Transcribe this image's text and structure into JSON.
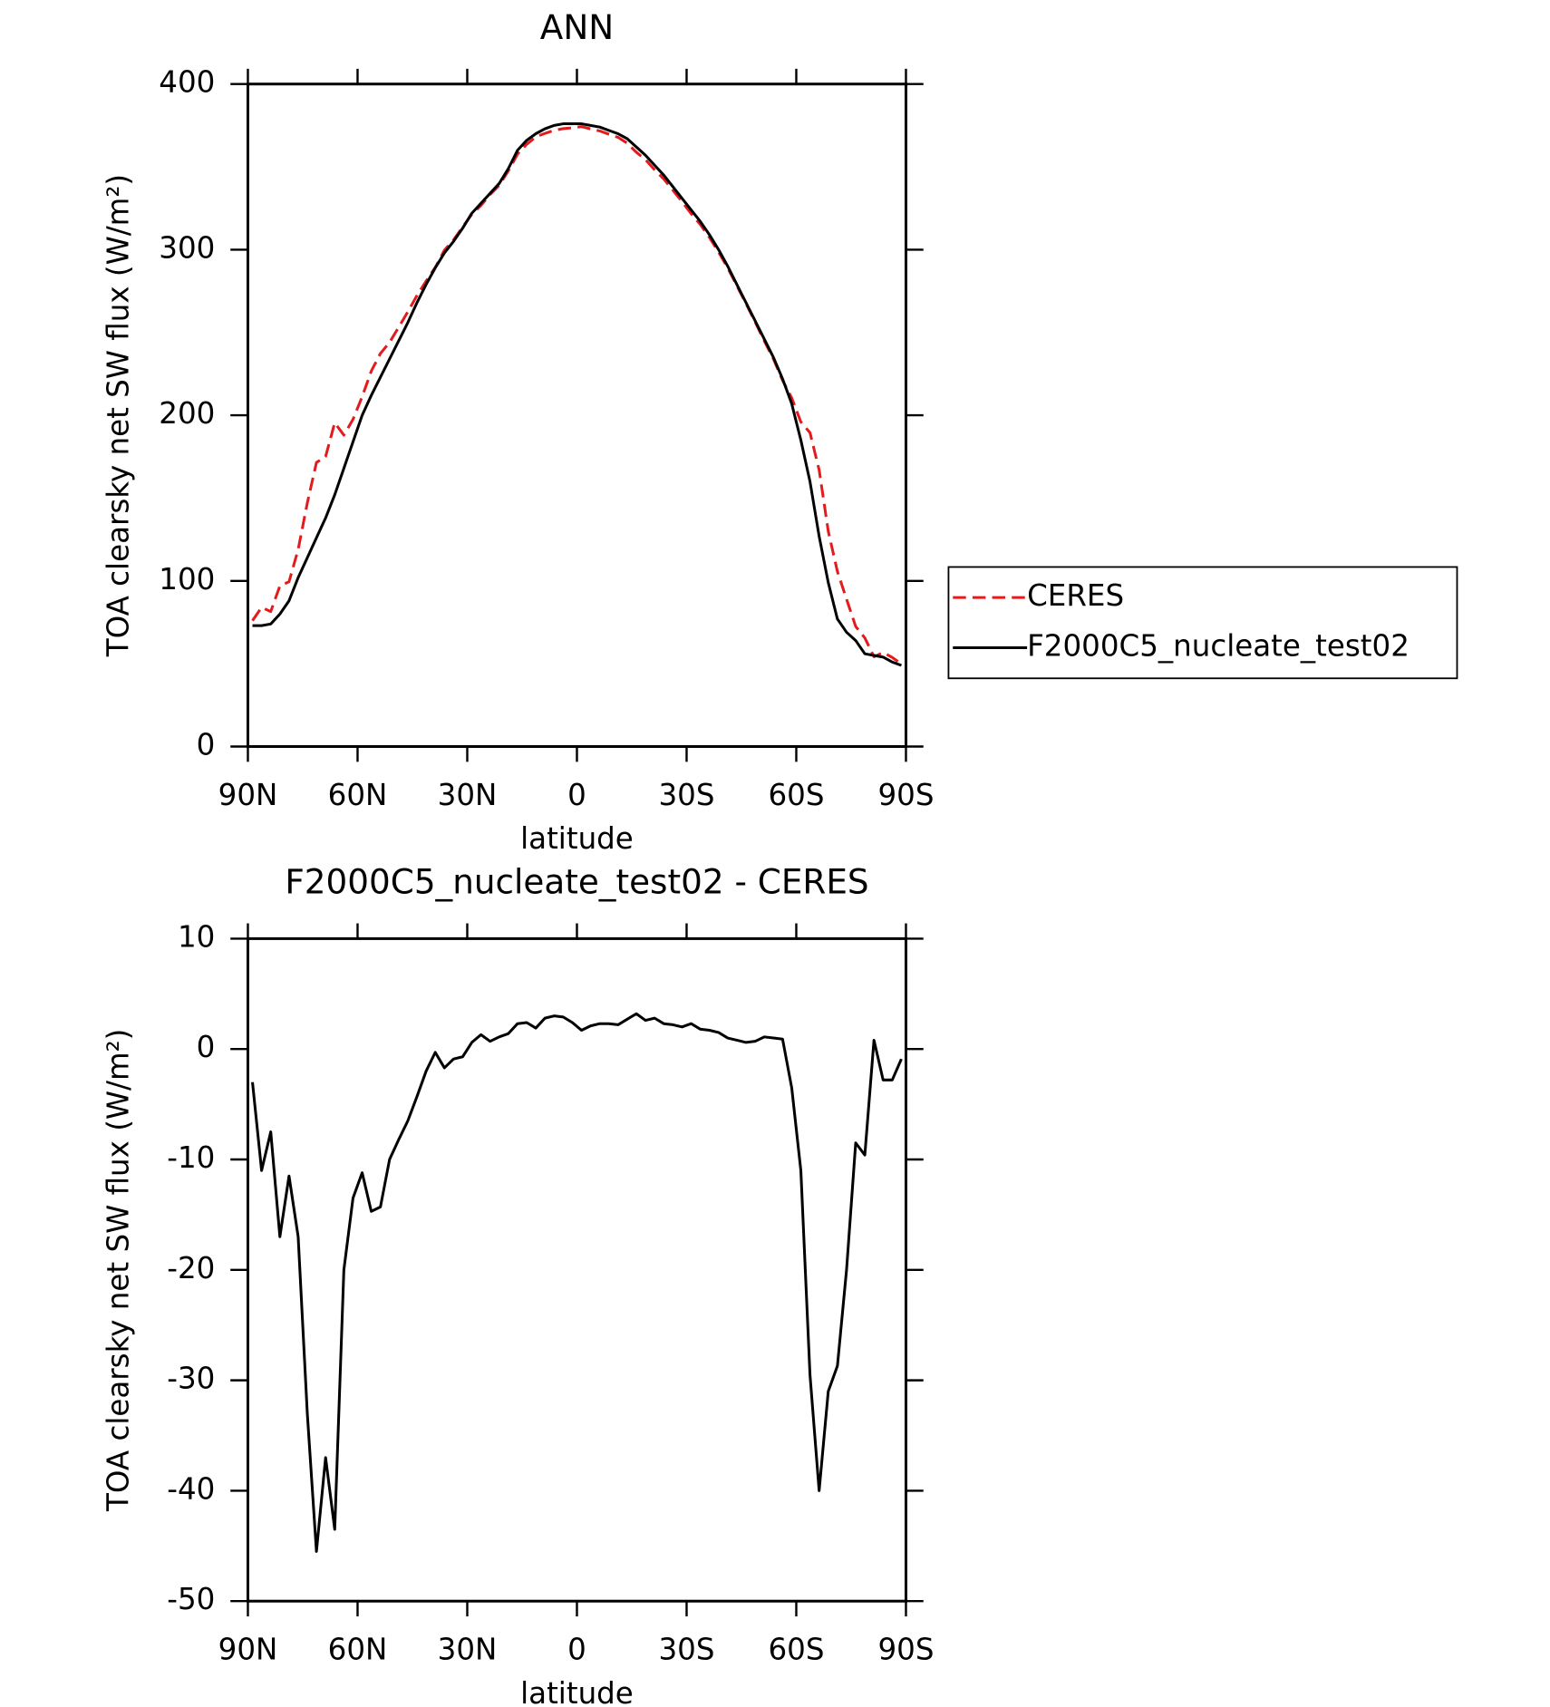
{
  "chart_data": [
    {
      "type": "line",
      "title": "ANN",
      "xlabel": "latitude",
      "ylabel": "TOA clearsky net SW flux (W/m²)",
      "x": [
        88.75,
        86.25,
        83.75,
        81.25,
        78.75,
        76.25,
        73.75,
        71.25,
        68.75,
        66.25,
        63.75,
        61.25,
        58.75,
        56.25,
        53.75,
        51.25,
        48.75,
        46.25,
        43.75,
        41.25,
        38.75,
        36.25,
        33.75,
        31.25,
        28.75,
        26.25,
        23.75,
        21.25,
        18.75,
        16.25,
        13.75,
        11.25,
        8.75,
        6.25,
        3.75,
        1.25,
        -1.25,
        -3.75,
        -6.25,
        -8.75,
        -11.25,
        -13.75,
        -16.25,
        -18.75,
        -21.25,
        -23.75,
        -26.25,
        -28.75,
        -31.25,
        -33.75,
        -36.25,
        -38.75,
        -41.25,
        -43.75,
        -46.25,
        -48.75,
        -51.25,
        -53.75,
        -56.25,
        -58.75,
        -61.25,
        -63.75,
        -66.25,
        -68.75,
        -71.25,
        -73.75,
        -76.25,
        -78.75,
        -81.25,
        -83.75,
        -86.25,
        -88.75
      ],
      "series": [
        {
          "name": "CERES",
          "color": "#e41a1c",
          "line_style": "dashed",
          "values": [
            76,
            84,
            81.5,
            97,
            99.5,
            119,
            147,
            171.5,
            175,
            195.5,
            188,
            197.5,
            211.2,
            226.7,
            237.3,
            244,
            253.2,
            262.5,
            272.3,
            281,
            289.3,
            299.7,
            305.9,
            313.7,
            321.4,
            326.7,
            333.3,
            338.9,
            347.6,
            357.7,
            363.6,
            368.1,
            370.2,
            372,
            373.1,
            373.6,
            374.3,
            372.9,
            371.7,
            369.7,
            367.8,
            364.3,
            358.8,
            354.4,
            348.2,
            342.7,
            335.8,
            329,
            321.7,
            315.2,
            307.3,
            298.5,
            289,
            278.2,
            267.4,
            256.3,
            244.9,
            234,
            221.1,
            210.5,
            196,
            189.5,
            167,
            130,
            105.7,
            89,
            72.5,
            65.6,
            54.2,
            56.8,
            53.8,
            49.9
          ]
        },
        {
          "name": "F2000C5_nucleate_test02",
          "color": "#000000",
          "line_style": "solid",
          "values": [
            73,
            73,
            74,
            80,
            88,
            102,
            114,
            126,
            138,
            152,
            168,
            184,
            200,
            212,
            223,
            234,
            245,
            256,
            268,
            279,
            289,
            298,
            305,
            313,
            322,
            328,
            334,
            340,
            349,
            360,
            366,
            370,
            373,
            375,
            376,
            376,
            376,
            375,
            374,
            372,
            370,
            367,
            362,
            357,
            351,
            345,
            338,
            331,
            324,
            317,
            309,
            300,
            290,
            279,
            268,
            257,
            246,
            235,
            222,
            207,
            185,
            160,
            127,
            99,
            77,
            69,
            64,
            56,
            55,
            54,
            51,
            49
          ]
        }
      ],
      "xlim": [
        90,
        -90
      ],
      "xticks": [
        {
          "value": 90,
          "label": "90N"
        },
        {
          "value": 60,
          "label": "60N"
        },
        {
          "value": 30,
          "label": "30N"
        },
        0,
        {
          "value": -30,
          "label": "30S"
        },
        {
          "value": -60,
          "label": "60S"
        },
        {
          "value": -90,
          "label": "90S"
        }
      ],
      "ylim": [
        0,
        400
      ],
      "yticks": [
        0,
        100,
        200,
        300,
        400
      ],
      "legend": "right"
    },
    {
      "type": "line",
      "title": "F2000C5_nucleate_test02 - CERES",
      "xlabel": "latitude",
      "ylabel": "TOA clearsky net SW flux (W/m²)",
      "x": [
        88.75,
        86.25,
        83.75,
        81.25,
        78.75,
        76.25,
        73.75,
        71.25,
        68.75,
        66.25,
        63.75,
        61.25,
        58.75,
        56.25,
        53.75,
        51.25,
        48.75,
        46.25,
        43.75,
        41.25,
        38.75,
        36.25,
        33.75,
        31.25,
        28.75,
        26.25,
        23.75,
        21.25,
        18.75,
        16.25,
        13.75,
        11.25,
        8.75,
        6.25,
        3.75,
        1.25,
        -1.25,
        -3.75,
        -6.25,
        -8.75,
        -11.25,
        -13.75,
        -16.25,
        -18.75,
        -21.25,
        -23.75,
        -26.25,
        -28.75,
        -31.25,
        -33.75,
        -36.25,
        -38.75,
        -41.25,
        -43.75,
        -46.25,
        -48.75,
        -51.25,
        -53.75,
        -56.25,
        -58.75,
        -61.25,
        -63.75,
        -66.25,
        -68.75,
        -71.25,
        -73.75,
        -76.25,
        -78.75,
        -81.25,
        -83.75,
        -86.25,
        -88.75
      ],
      "series": [
        {
          "color": "#000000",
          "line_style": "solid",
          "values": [
            -3,
            -11,
            -7.5,
            -17,
            -11.5,
            -17,
            -33,
            -45.5,
            -37,
            -43.5,
            -20,
            -13.5,
            -11.2,
            -14.7,
            -14.3,
            -10,
            -8.2,
            -6.5,
            -4.3,
            -2,
            -0.3,
            -1.7,
            -0.9,
            -0.7,
            0.6,
            1.3,
            0.7,
            1.1,
            1.4,
            2.3,
            2.4,
            1.9,
            2.8,
            3,
            2.9,
            2.4,
            1.7,
            2.1,
            2.3,
            2.3,
            2.2,
            2.7,
            3.2,
            2.6,
            2.8,
            2.3,
            2.2,
            2,
            2.3,
            1.8,
            1.7,
            1.5,
            1,
            0.8,
            0.6,
            0.7,
            1.1,
            1,
            0.9,
            -3.5,
            -11,
            -29.5,
            -40,
            -31,
            -28.7,
            -20,
            -8.5,
            -9.6,
            0.8,
            -2.8,
            -2.8,
            -0.9
          ]
        }
      ],
      "xlim": [
        90,
        -90
      ],
      "xticks": [
        {
          "value": 90,
          "label": "90N"
        },
        {
          "value": 60,
          "label": "60N"
        },
        {
          "value": 30,
          "label": "30N"
        },
        0,
        {
          "value": -30,
          "label": "30S"
        },
        {
          "value": -60,
          "label": "60S"
        },
        {
          "value": -90,
          "label": "90S"
        }
      ],
      "ylim": [
        -50,
        10
      ],
      "yticks": [
        -50,
        -40,
        -30,
        -20,
        -10,
        0,
        10
      ]
    }
  ]
}
